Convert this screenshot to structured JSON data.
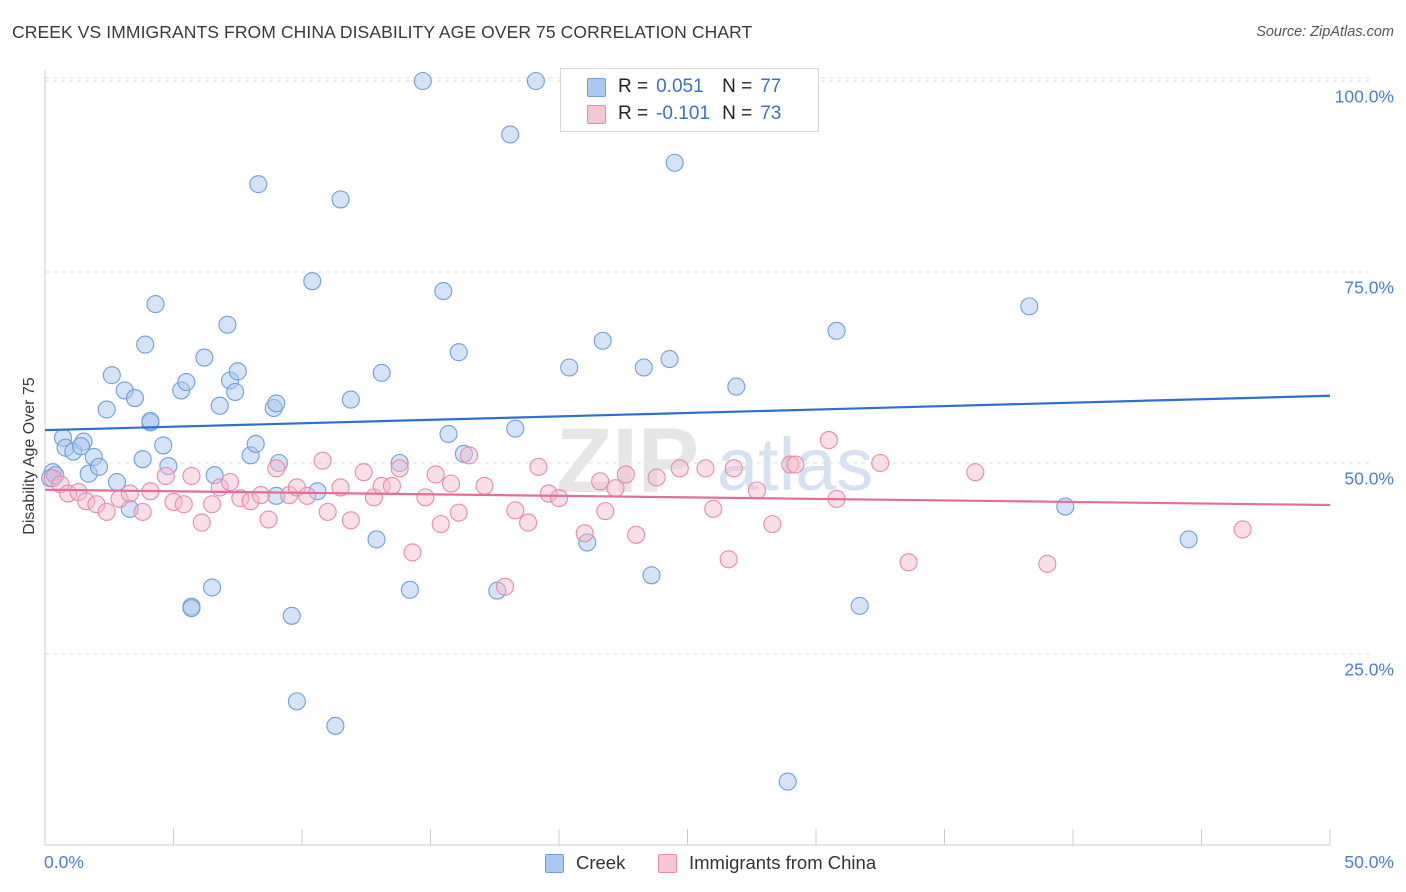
{
  "title": "CREEK VS IMMIGRANTS FROM CHINA DISABILITY AGE OVER 75 CORRELATION CHART",
  "source": "Source: ZipAtlas.com",
  "watermark": {
    "zip": "ZIP",
    "atlas": "atlas"
  },
  "legend": {
    "rows": [
      {
        "r_label": "R =",
        "r_value": "0.051",
        "n_label": "N =",
        "n_value": "77"
      },
      {
        "r_label": "R =",
        "r_value": "-0.101",
        "n_label": "N =",
        "n_value": "73"
      }
    ]
  },
  "colors": {
    "creek_fill": "#aac8f0",
    "creek_stroke": "#6f9fdc",
    "creek_line": "#2f6fd0",
    "china_fill": "#f6b8cc",
    "china_stroke": "#e88aa8",
    "china_line": "#e0709a",
    "tick_text": "#4a7fcc",
    "grid": "#dddddd"
  },
  "chart_data": {
    "type": "scatter",
    "title": "CREEK VS IMMIGRANTS FROM CHINA DISABILITY AGE OVER 75 CORRELATION CHART",
    "xlabel": "",
    "ylabel": "Disability Age Over 75",
    "xlim": [
      0,
      50
    ],
    "ylim": [
      0,
      102
    ],
    "x_tick_labels": [
      "0.0%",
      "50.0%"
    ],
    "y_ticks": [
      25,
      50,
      75,
      100
    ],
    "y_tick_labels": [
      "25.0%",
      "50.0%",
      "75.0%",
      "100.0%"
    ],
    "grid": true,
    "series": [
      {
        "name": "Creek",
        "R": 0.051,
        "N": 77,
        "trend": {
          "x": [
            0,
            50
          ],
          "y": [
            54.3,
            58.8
          ]
        },
        "points": [
          [
            0.3,
            48.8
          ],
          [
            0.7,
            53.3
          ],
          [
            0.8,
            52.0
          ],
          [
            1.1,
            51.5
          ],
          [
            1.5,
            52.8
          ],
          [
            1.7,
            48.6
          ],
          [
            1.9,
            50.8
          ],
          [
            2.1,
            49.5
          ],
          [
            2.4,
            57.0
          ],
          [
            2.6,
            61.5
          ],
          [
            2.8,
            47.5
          ],
          [
            3.1,
            59.5
          ],
          [
            3.3,
            44.0
          ],
          [
            3.5,
            58.5
          ],
          [
            3.8,
            50.5
          ],
          [
            3.9,
            65.5
          ],
          [
            4.1,
            55.3
          ],
          [
            4.3,
            70.8
          ],
          [
            4.6,
            52.3
          ],
          [
            4.8,
            49.6
          ],
          [
            5.3,
            59.5
          ],
          [
            5.5,
            60.6
          ],
          [
            5.7,
            31.2
          ],
          [
            6.2,
            63.8
          ],
          [
            6.5,
            33.7
          ],
          [
            6.6,
            48.4
          ],
          [
            6.8,
            57.5
          ],
          [
            7.1,
            68.1
          ],
          [
            7.2,
            60.8
          ],
          [
            7.4,
            59.3
          ],
          [
            7.5,
            62.0
          ],
          [
            8.0,
            51.0
          ],
          [
            8.2,
            52.5
          ],
          [
            8.3,
            86.5
          ],
          [
            8.9,
            57.2
          ],
          [
            9.0,
            57.8
          ],
          [
            9.1,
            50.0
          ],
          [
            9.6,
            30.0
          ],
          [
            9.8,
            18.8
          ],
          [
            10.4,
            73.8
          ],
          [
            10.6,
            46.3
          ],
          [
            11.3,
            15.6
          ],
          [
            11.5,
            84.5
          ],
          [
            11.9,
            58.3
          ],
          [
            12.9,
            40.0
          ],
          [
            13.1,
            61.8
          ],
          [
            13.8,
            50.0
          ],
          [
            14.2,
            33.4
          ],
          [
            14.7,
            100.0
          ],
          [
            15.5,
            72.5
          ],
          [
            15.7,
            53.8
          ],
          [
            16.1,
            64.5
          ],
          [
            16.3,
            51.2
          ],
          [
            17.6,
            33.3
          ],
          [
            18.1,
            93.0
          ],
          [
            18.3,
            54.5
          ],
          [
            19.1,
            100.0
          ],
          [
            20.4,
            62.5
          ],
          [
            21.1,
            39.6
          ],
          [
            21.7,
            66.0
          ],
          [
            23.3,
            62.5
          ],
          [
            23.6,
            35.3
          ],
          [
            24.3,
            63.6
          ],
          [
            24.5,
            89.3
          ],
          [
            26.9,
            60.0
          ],
          [
            28.9,
            8.3
          ],
          [
            30.8,
            67.3
          ],
          [
            31.7,
            31.3
          ],
          [
            38.3,
            70.5
          ],
          [
            39.7,
            44.3
          ],
          [
            44.5,
            40.0
          ],
          [
            0.2,
            48.0
          ],
          [
            1.4,
            52.2
          ],
          [
            4.1,
            55.5
          ],
          [
            0.4,
            48.4
          ],
          [
            9.0,
            45.7
          ],
          [
            5.7,
            31.0
          ]
        ]
      },
      {
        "name": "Immigrants from China",
        "R": -0.101,
        "N": 73,
        "trend": {
          "x": [
            0,
            50
          ],
          "y": [
            46.5,
            44.5
          ]
        },
        "points": [
          [
            0.3,
            48.0
          ],
          [
            0.6,
            47.2
          ],
          [
            0.9,
            46.0
          ],
          [
            1.3,
            46.2
          ],
          [
            1.6,
            45.0
          ],
          [
            2.0,
            44.6
          ],
          [
            2.4,
            43.6
          ],
          [
            2.9,
            45.3
          ],
          [
            3.3,
            46.0
          ],
          [
            3.8,
            43.6
          ],
          [
            4.1,
            46.3
          ],
          [
            4.7,
            48.3
          ],
          [
            5.0,
            44.9
          ],
          [
            5.4,
            44.6
          ],
          [
            5.7,
            48.3
          ],
          [
            6.1,
            42.2
          ],
          [
            6.5,
            44.6
          ],
          [
            6.8,
            46.8
          ],
          [
            7.2,
            47.5
          ],
          [
            7.6,
            45.4
          ],
          [
            8.0,
            45.0
          ],
          [
            8.4,
            45.8
          ],
          [
            8.7,
            42.6
          ],
          [
            9.0,
            49.3
          ],
          [
            9.5,
            45.8
          ],
          [
            9.8,
            46.8
          ],
          [
            10.2,
            45.7
          ],
          [
            10.8,
            50.3
          ],
          [
            11.0,
            43.6
          ],
          [
            11.5,
            46.8
          ],
          [
            11.9,
            42.5
          ],
          [
            12.4,
            48.8
          ],
          [
            12.8,
            45.5
          ],
          [
            13.1,
            47.0
          ],
          [
            13.5,
            47.0
          ],
          [
            13.8,
            49.3
          ],
          [
            14.3,
            38.3
          ],
          [
            14.8,
            45.5
          ],
          [
            15.2,
            48.5
          ],
          [
            15.4,
            42.0
          ],
          [
            15.8,
            47.3
          ],
          [
            16.1,
            43.5
          ],
          [
            16.5,
            51.0
          ],
          [
            17.1,
            47.0
          ],
          [
            17.9,
            33.8
          ],
          [
            18.3,
            43.8
          ],
          [
            18.8,
            42.2
          ],
          [
            19.2,
            49.5
          ],
          [
            19.6,
            46.0
          ],
          [
            20.0,
            45.4
          ],
          [
            21.0,
            40.8
          ],
          [
            21.6,
            47.6
          ],
          [
            21.8,
            43.7
          ],
          [
            22.2,
            46.7
          ],
          [
            22.6,
            48.5
          ],
          [
            23.0,
            40.6
          ],
          [
            23.8,
            48.1
          ],
          [
            24.7,
            49.3
          ],
          [
            25.7,
            49.3
          ],
          [
            26.0,
            44.0
          ],
          [
            26.6,
            37.4
          ],
          [
            26.8,
            49.3
          ],
          [
            27.7,
            46.4
          ],
          [
            28.3,
            42.0
          ],
          [
            29.0,
            49.8
          ],
          [
            29.2,
            49.8
          ],
          [
            30.5,
            53.0
          ],
          [
            30.8,
            45.3
          ],
          [
            32.5,
            50.0
          ],
          [
            33.6,
            37.0
          ],
          [
            36.2,
            48.8
          ],
          [
            39.0,
            36.8
          ],
          [
            46.6,
            41.3
          ]
        ]
      }
    ]
  },
  "bottom_legend": [
    {
      "label": "Creek"
    },
    {
      "label": "Immigrants from China"
    }
  ]
}
